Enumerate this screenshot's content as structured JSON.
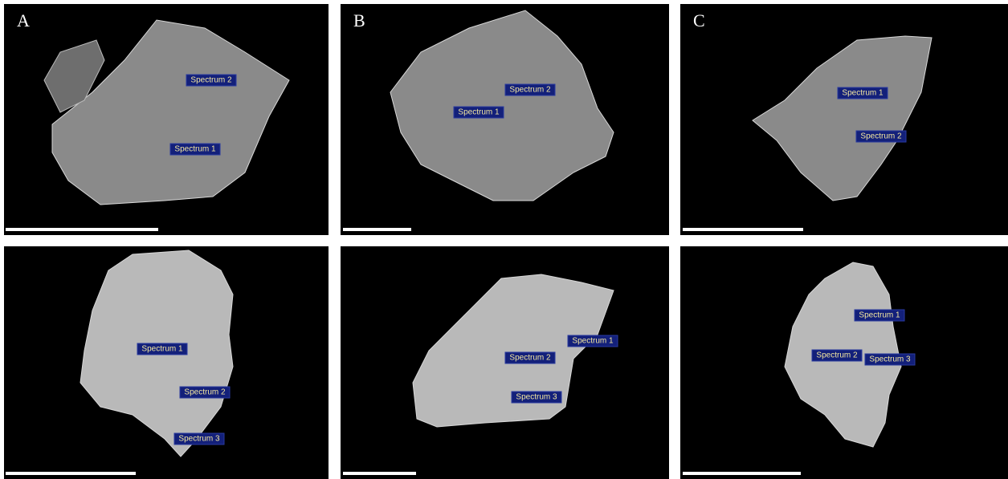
{
  "panels": [
    {
      "letter": "A",
      "labels": [
        "Spectrum 2",
        "Spectrum 1"
      ]
    },
    {
      "letter": "B",
      "labels": [
        "Spectrum 2",
        "Spectrum 1"
      ]
    },
    {
      "letter": "C",
      "labels": [
        "Spectrum 1",
        "Spectrum 2"
      ]
    },
    {
      "labels": [
        "Spectrum 1",
        "Spectrum 2",
        "Spectrum 3"
      ]
    },
    {
      "labels": [
        "Spectrum 1",
        "Spectrum 2",
        "Spectrum 3"
      ]
    },
    {
      "labels": [
        "Spectrum 1",
        "Spectrum 2",
        "Spectrum 3"
      ]
    }
  ]
}
